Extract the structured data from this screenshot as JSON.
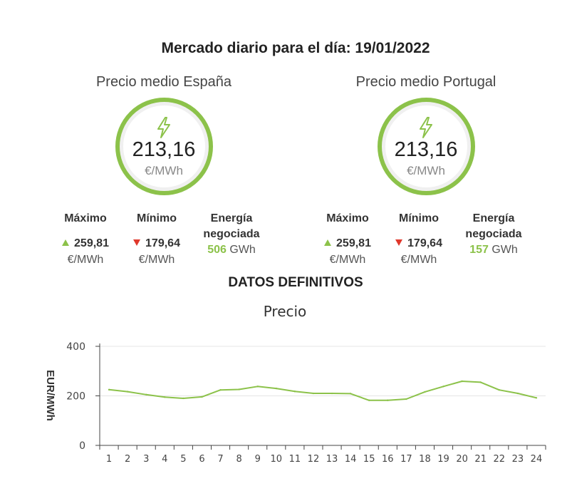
{
  "header": {
    "title": "Mercado diario para el día: 19/01/2022"
  },
  "markets": [
    {
      "label": "Precio medio España",
      "price": "213,16",
      "unit": "€/MWh",
      "max_label": "Máximo",
      "max_value": "259,81",
      "max_unit": "€/MWh",
      "min_label": "Mínimo",
      "min_value": "179,64",
      "min_unit": "€/MWh",
      "energy_label_1": "Energía",
      "energy_label_2": "negociada",
      "energy_value": "506",
      "energy_unit": "GWh"
    },
    {
      "label": "Precio medio Portugal",
      "price": "213,16",
      "unit": "€/MWh",
      "max_label": "Máximo",
      "max_value": "259,81",
      "max_unit": "€/MWh",
      "min_label": "Mínimo",
      "min_value": "179,64",
      "min_unit": "€/MWh",
      "energy_label_1": "Energía",
      "energy_label_2": "negociada",
      "energy_value": "157",
      "energy_unit": "GWh"
    }
  ],
  "section": {
    "title": "DATOS DEFINITIVOS"
  },
  "colors": {
    "accent": "#8cc24a",
    "down": "#e0382c"
  },
  "chart_data": {
    "type": "line",
    "title": "Precio",
    "xlabel": "",
    "ylabel": "EUR/MWh",
    "x": [
      1,
      2,
      3,
      4,
      5,
      6,
      7,
      8,
      9,
      10,
      11,
      12,
      13,
      14,
      15,
      16,
      17,
      18,
      19,
      20,
      21,
      22,
      23,
      24
    ],
    "series": [
      {
        "values": [
          225,
          217,
          205,
          195,
          190,
          196,
          224,
          226,
          238,
          230,
          218,
          210,
          210,
          209,
          182,
          182,
          187,
          216,
          238,
          259,
          255,
          224,
          210,
          192
        ]
      }
    ],
    "ylim": [
      0,
      400
    ],
    "yticks": [
      0,
      200,
      400
    ],
    "grid": true,
    "legend": "none"
  }
}
